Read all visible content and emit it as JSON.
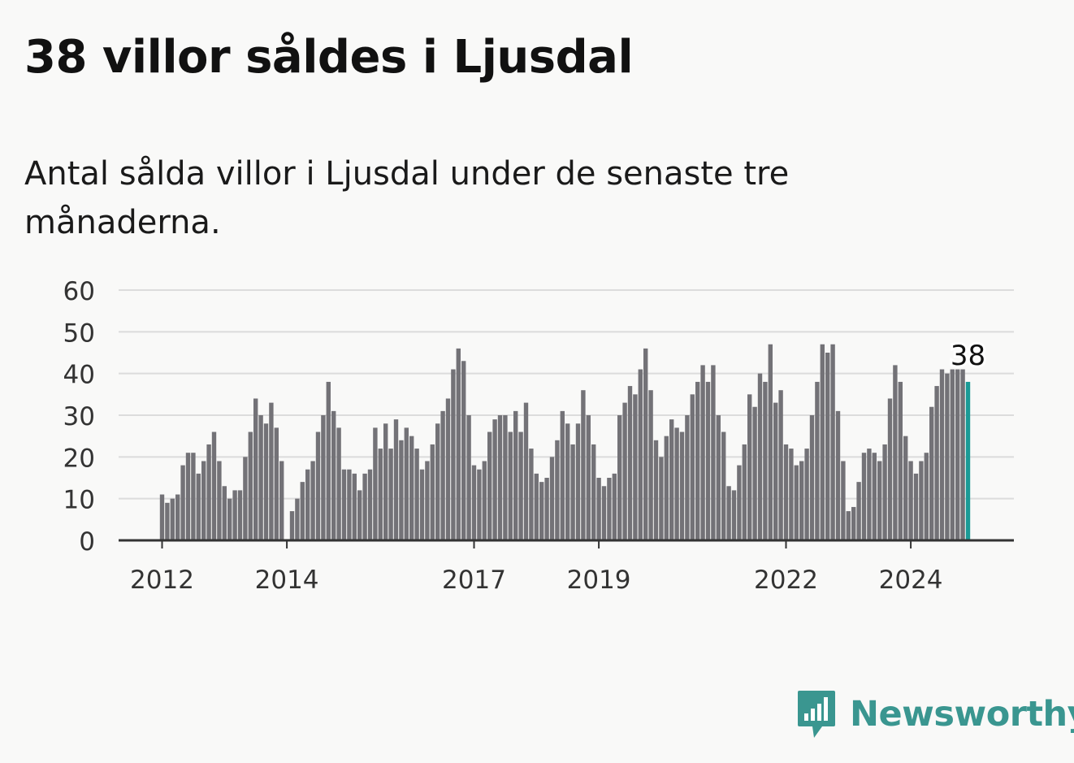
{
  "title": "38 villor såldes i Ljusdal",
  "subtitle": "Antal sålda villor i Ljusdal under de senaste tre månaderna.",
  "brand": {
    "name": "Newsworthy"
  },
  "colors": {
    "bar": "#737277",
    "highlight": "#1a9a96",
    "grid": "#dcdcdc",
    "axis": "#333333",
    "text": "#333333"
  },
  "chart_data": {
    "type": "bar",
    "title": "38 villor såldes i Ljusdal",
    "subtitle": "Antal sålda villor i Ljusdal under de senaste tre månaderna.",
    "xlabel": "",
    "ylabel": "",
    "ylim": [
      0,
      60
    ],
    "yticks": [
      0,
      10,
      20,
      30,
      40,
      50,
      60
    ],
    "xticks": [
      "2012",
      "2014",
      "2017",
      "2019",
      "2022",
      "2024"
    ],
    "grid": true,
    "legend": "none",
    "highlight_label": "38",
    "series": [
      {
        "values": [
          11,
          9,
          10,
          11,
          18,
          21,
          21,
          16,
          19,
          23,
          26,
          19,
          13,
          10,
          12,
          12,
          20,
          26,
          34,
          30,
          28,
          33,
          27,
          19,
          null,
          7,
          10,
          14,
          17,
          19,
          26,
          30,
          38,
          31,
          27,
          17,
          17,
          16,
          12,
          16,
          17,
          27,
          22,
          28,
          22,
          29,
          24,
          27,
          25,
          22,
          17,
          19,
          23,
          28,
          31,
          34,
          41,
          46,
          43,
          30,
          18,
          17,
          19,
          26,
          29,
          30,
          30,
          26,
          31,
          26,
          33,
          22,
          16,
          14,
          15,
          20,
          24,
          31,
          28,
          23,
          28,
          36,
          30,
          23,
          15,
          13,
          15,
          16,
          30,
          33,
          37,
          35,
          41,
          46,
          36,
          24,
          20,
          25,
          29,
          27,
          26,
          30,
          35,
          38,
          42,
          38,
          42,
          30,
          26,
          13,
          12,
          18,
          23,
          35,
          32,
          40,
          38,
          47,
          33,
          36,
          23,
          22,
          18,
          19,
          22,
          30,
          38,
          47,
          45,
          47,
          31,
          19,
          7,
          8,
          14,
          21,
          22,
          21,
          19,
          23,
          34,
          42,
          38,
          25,
          19,
          16,
          19,
          21,
          32,
          37,
          41,
          40,
          41,
          41,
          41,
          38
        ]
      }
    ]
  }
}
